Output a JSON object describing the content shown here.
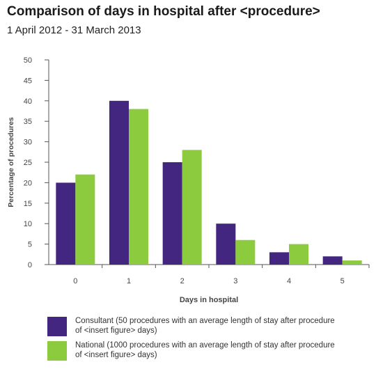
{
  "title": "Comparison of days in hospital after <procedure>",
  "subtitle": "1 April 2012 - 31 March 2013",
  "colors": {
    "consultant": "#432680",
    "national": "#8dcb3e",
    "axis": "#555555"
  },
  "legend": [
    {
      "key": "consultant",
      "label": "Consultant (50 procedures with an average length of stay after procedure of <insert figure> days)"
    },
    {
      "key": "national",
      "label": "National (1000 procedures with an average length of stay after procedure of <insert figure> days)"
    }
  ],
  "chart_data": {
    "type": "bar",
    "xlabel": "Days in hospital",
    "ylabel": "Percentage of procedures",
    "categories": [
      "0",
      "1",
      "2",
      "3",
      "4",
      "5"
    ],
    "yticks": [
      "0",
      "5",
      "10",
      "15",
      "20",
      "25",
      "30",
      "35",
      "40",
      "45",
      "50"
    ],
    "ylim": [
      0,
      50
    ],
    "grid": false,
    "legend_position": "bottom",
    "series": [
      {
        "name": "Consultant",
        "values": [
          20,
          40,
          25,
          10,
          3,
          2
        ]
      },
      {
        "name": "National",
        "values": [
          22,
          38,
          28,
          6,
          5,
          1
        ]
      }
    ]
  }
}
